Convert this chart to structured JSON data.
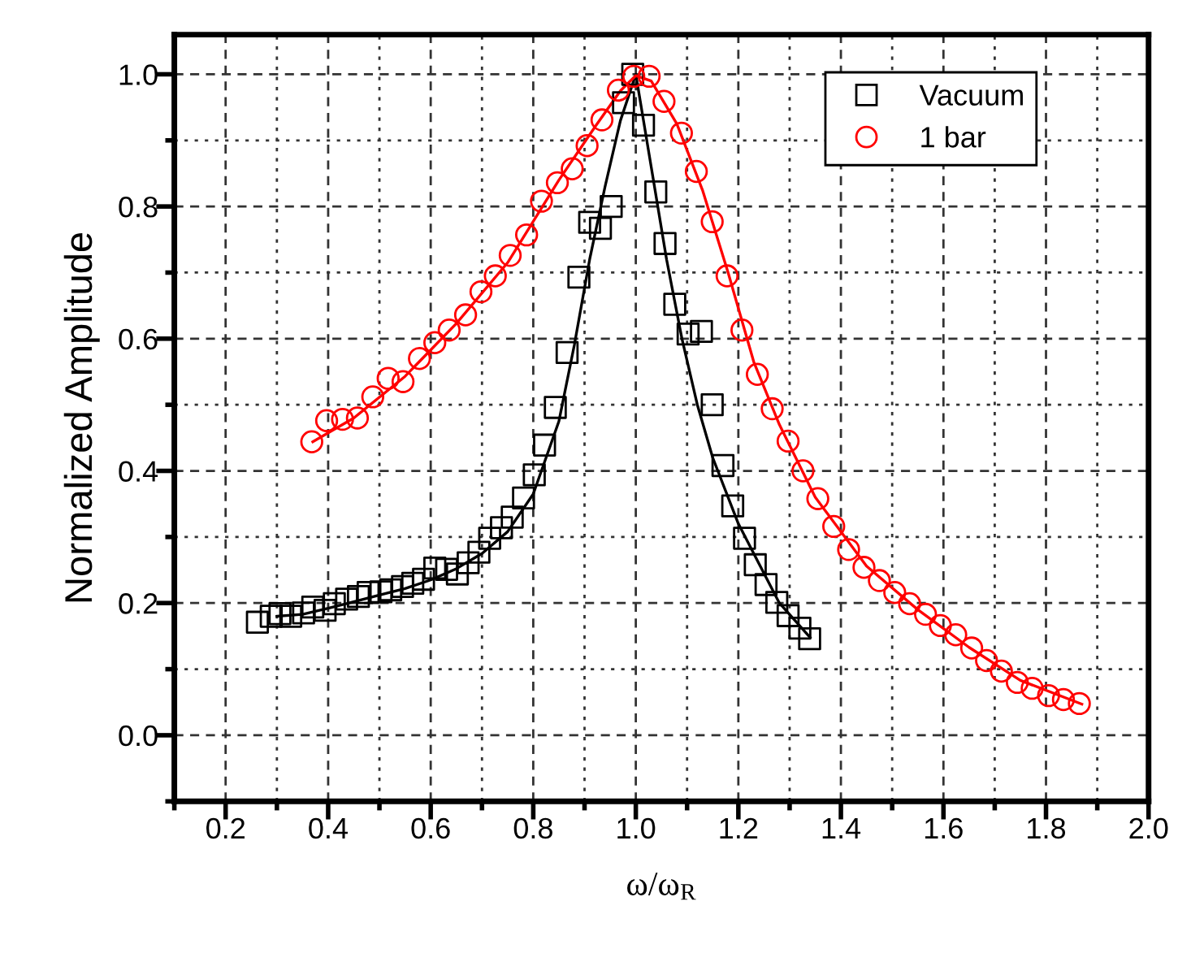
{
  "chart_data": {
    "type": "scatter",
    "xlabel": "ω/ω$_{R}$",
    "ylabel": "Normalized Amplitude",
    "xlim": [
      0.1,
      2.0
    ],
    "ylim": [
      -0.1,
      1.06
    ],
    "xticks": [
      {
        "value": 0.1,
        "label": null
      },
      0.2,
      {
        "value": 0.3,
        "label": null
      },
      0.4,
      {
        "value": 0.5,
        "label": null
      },
      0.6,
      {
        "value": 0.7,
        "label": null
      },
      0.8,
      {
        "value": 0.9,
        "label": null
      },
      {
        "value": 1.0,
        "label": "1.0"
      },
      {
        "value": 1.1,
        "label": null
      },
      1.2,
      {
        "value": 1.3,
        "label": null
      },
      1.4,
      {
        "value": 1.5,
        "label": null
      },
      1.6,
      {
        "value": 1.7,
        "label": null
      },
      1.8,
      {
        "value": 1.9,
        "label": null
      },
      {
        "value": 2.0,
        "label": "2.0"
      }
    ],
    "yticks": [
      {
        "value": -0.1,
        "label": null
      },
      {
        "value": 0.0,
        "label": "0.0"
      },
      {
        "value": 0.1,
        "label": null
      },
      0.2,
      {
        "value": 0.3,
        "label": null
      },
      0.4,
      {
        "value": 0.5,
        "label": null
      },
      0.6,
      {
        "value": 0.7,
        "label": null
      },
      0.8,
      {
        "value": 0.9,
        "label": null
      },
      {
        "value": 1.0,
        "label": "1.0"
      }
    ],
    "grid": true,
    "legend": "top right",
    "series": [
      {
        "name": "Vacuum",
        "marker": "square",
        "color": "#000000",
        "x": [
          0.262,
          0.289,
          0.306,
          0.327,
          0.352,
          0.37,
          0.394,
          0.412,
          0.436,
          0.459,
          0.478,
          0.503,
          0.522,
          0.545,
          0.565,
          0.586,
          0.608,
          0.631,
          0.652,
          0.673,
          0.694,
          0.715,
          0.738,
          0.759,
          0.781,
          0.802,
          0.822,
          0.843,
          0.866,
          0.889,
          0.91,
          0.931,
          0.952,
          0.976,
          0.994,
          1.015,
          1.039,
          1.057,
          1.076,
          1.102,
          1.128,
          1.149,
          1.17,
          1.189,
          1.212,
          1.233,
          1.254,
          1.275,
          1.297,
          1.32,
          1.339
        ],
        "values": [
          0.171,
          0.18,
          0.184,
          0.18,
          0.185,
          0.194,
          0.189,
          0.199,
          0.206,
          0.21,
          0.216,
          0.217,
          0.22,
          0.225,
          0.23,
          0.236,
          0.253,
          0.251,
          0.244,
          0.261,
          0.277,
          0.298,
          0.314,
          0.33,
          0.359,
          0.394,
          0.439,
          0.496,
          0.579,
          0.693,
          0.776,
          0.767,
          0.8,
          0.957,
          1.0,
          0.923,
          0.822,
          0.744,
          0.652,
          0.607,
          0.611,
          0.5,
          0.408,
          0.347,
          0.298,
          0.258,
          0.228,
          0.201,
          0.181,
          0.162,
          0.146
        ]
      },
      {
        "name": "1 bar",
        "marker": "circle",
        "color": "#ff0000",
        "x": [
          0.368,
          0.397,
          0.428,
          0.457,
          0.487,
          0.517,
          0.546,
          0.578,
          0.608,
          0.636,
          0.668,
          0.698,
          0.726,
          0.755,
          0.787,
          0.816,
          0.847,
          0.876,
          0.905,
          0.934,
          0.966,
          0.996,
          1.026,
          1.055,
          1.089,
          1.118,
          1.149,
          1.178,
          1.207,
          1.237,
          1.266,
          1.297,
          1.326,
          1.355,
          1.386,
          1.415,
          1.445,
          1.475,
          1.505,
          1.534,
          1.565,
          1.594,
          1.624,
          1.655,
          1.684,
          1.713,
          1.744,
          1.773,
          1.805,
          1.834,
          1.865
        ],
        "values": [
          0.444,
          0.476,
          0.478,
          0.48,
          0.512,
          0.54,
          0.535,
          0.57,
          0.594,
          0.613,
          0.636,
          0.671,
          0.695,
          0.726,
          0.757,
          0.808,
          0.836,
          0.857,
          0.892,
          0.931,
          0.976,
          0.997,
          0.997,
          0.959,
          0.911,
          0.853,
          0.777,
          0.695,
          0.613,
          0.546,
          0.494,
          0.445,
          0.4,
          0.358,
          0.316,
          0.281,
          0.254,
          0.234,
          0.216,
          0.199,
          0.183,
          0.166,
          0.152,
          0.132,
          0.113,
          0.097,
          0.08,
          0.071,
          0.06,
          0.054,
          0.048
        ]
      },
      {
        "type": "line",
        "marker": "none",
        "color": "#000000",
        "x": [
          0.3,
          0.35,
          0.4,
          0.45,
          0.5,
          0.55,
          0.6,
          0.65,
          0.7,
          0.75,
          0.8,
          0.85,
          0.88,
          0.91,
          0.94,
          0.97,
          1.0,
          1.03,
          1.06,
          1.09,
          1.12,
          1.15,
          1.18,
          1.2,
          1.24,
          1.28,
          1.34
        ],
        "values": [
          0.18,
          0.183,
          0.192,
          0.202,
          0.212,
          0.222,
          0.235,
          0.252,
          0.275,
          0.308,
          0.365,
          0.475,
          0.59,
          0.72,
          0.83,
          0.93,
          1.0,
          0.86,
          0.72,
          0.6,
          0.5,
          0.42,
          0.36,
          0.32,
          0.26,
          0.2,
          0.148
        ]
      },
      {
        "type": "line",
        "marker": "none",
        "color": "#ff0000",
        "x": [
          0.37,
          0.45,
          0.55,
          0.65,
          0.75,
          0.85,
          0.92,
          0.97,
          1.0,
          1.03,
          1.08,
          1.13,
          1.18,
          1.23,
          1.28,
          1.35,
          1.45,
          1.55,
          1.65,
          1.75,
          1.87
        ],
        "values": [
          0.444,
          0.48,
          0.543,
          0.623,
          0.715,
          0.84,
          0.92,
          0.975,
          0.998,
          0.99,
          0.925,
          0.825,
          0.7,
          0.565,
          0.47,
          0.36,
          0.256,
          0.19,
          0.133,
          0.083,
          0.047
        ]
      }
    ]
  }
}
